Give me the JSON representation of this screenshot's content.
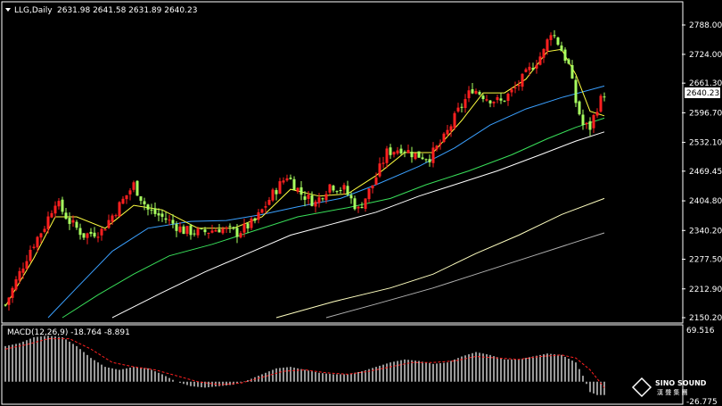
{
  "header": {
    "symbol_title": "LLG,Daily",
    "ohlc": "2631.98 2641.58 2631.89 2640.23"
  },
  "macd_label": "MACD(12,26,9) -18.764 -8.891",
  "watermark": {
    "brand": "SINO SOUND",
    "sub": "漢 聲 集 團"
  },
  "colors": {
    "background": "#000000",
    "up_candle": "#ff2020",
    "down_candle": "#a8ff60",
    "ma_fast": "#ffff40",
    "ma_mid": "#3aa0ff",
    "ma_slow": "#39e05a",
    "ma_white": "#ffffff",
    "ma_long1": "#ffffc0",
    "ma_long2": "#b0b0b0",
    "macd_hist": "#ffffff",
    "macd_signal": "#ff2020",
    "current_price_box": "#ffffff"
  },
  "chart_data": [
    {
      "type": "candlestick",
      "x_unit": "trading days (oldest to newest)",
      "yticks": [
        "2788.00",
        "2724.00",
        "2661.30",
        "2596.70",
        "2532.10",
        "2469.45",
        "2404.80",
        "2340.20",
        "2277.50",
        "2212.90",
        "2150.20"
      ],
      "current_price": "2640.23",
      "ylim": [
        2150.2,
        2788.0
      ],
      "path_points": [
        [
          0,
          2178
        ],
        [
          3,
          2230
        ],
        [
          7,
          2300
        ],
        [
          11,
          2350
        ],
        [
          14,
          2405
        ],
        [
          18,
          2360
        ],
        [
          22,
          2330
        ],
        [
          27,
          2340
        ],
        [
          32,
          2395
        ],
        [
          36,
          2440
        ],
        [
          40,
          2385
        ],
        [
          45,
          2365
        ],
        [
          50,
          2340
        ],
        [
          55,
          2335
        ],
        [
          60,
          2345
        ],
        [
          65,
          2335
        ],
        [
          70,
          2360
        ],
        [
          75,
          2420
        ],
        [
          79,
          2460
        ],
        [
          83,
          2420
        ],
        [
          87,
          2400
        ],
        [
          91,
          2440
        ],
        [
          95,
          2430
        ],
        [
          99,
          2385
        ],
        [
          103,
          2440
        ],
        [
          107,
          2510
        ],
        [
          111,
          2520
        ],
        [
          115,
          2505
        ],
        [
          119,
          2500
        ],
        [
          123,
          2540
        ],
        [
          127,
          2600
        ],
        [
          131,
          2650
        ],
        [
          135,
          2630
        ],
        [
          139,
          2620
        ],
        [
          143,
          2650
        ],
        [
          147,
          2690
        ],
        [
          151,
          2730
        ],
        [
          153,
          2775
        ],
        [
          155,
          2750
        ],
        [
          158,
          2700
        ],
        [
          160,
          2620
        ],
        [
          162,
          2570
        ],
        [
          164,
          2565
        ],
        [
          166,
          2610
        ],
        [
          168,
          2640
        ]
      ],
      "ma_fast_points": [
        [
          0,
          2175
        ],
        [
          8,
          2280
        ],
        [
          14,
          2370
        ],
        [
          20,
          2370
        ],
        [
          28,
          2345
        ],
        [
          36,
          2395
        ],
        [
          44,
          2385
        ],
        [
          54,
          2345
        ],
        [
          64,
          2345
        ],
        [
          72,
          2370
        ],
        [
          80,
          2430
        ],
        [
          88,
          2415
        ],
        [
          96,
          2420
        ],
        [
          104,
          2460
        ],
        [
          112,
          2510
        ],
        [
          120,
          2510
        ],
        [
          128,
          2580
        ],
        [
          134,
          2640
        ],
        [
          140,
          2640
        ],
        [
          146,
          2670
        ],
        [
          152,
          2730
        ],
        [
          156,
          2735
        ],
        [
          160,
          2680
        ],
        [
          164,
          2600
        ],
        [
          168,
          2590
        ]
      ],
      "ma_mid_points": [
        [
          12,
          2150
        ],
        [
          20,
          2215
        ],
        [
          30,
          2295
        ],
        [
          40,
          2345
        ],
        [
          52,
          2360
        ],
        [
          62,
          2362
        ],
        [
          72,
          2375
        ],
        [
          82,
          2392
        ],
        [
          94,
          2410
        ],
        [
          104,
          2440
        ],
        [
          116,
          2480
        ],
        [
          126,
          2520
        ],
        [
          136,
          2570
        ],
        [
          146,
          2605
        ],
        [
          156,
          2630
        ],
        [
          168,
          2655
        ]
      ],
      "ma_slow_points": [
        [
          16,
          2150
        ],
        [
          26,
          2200
        ],
        [
          36,
          2245
        ],
        [
          46,
          2285
        ],
        [
          58,
          2310
        ],
        [
          70,
          2340
        ],
        [
          82,
          2370
        ],
        [
          96,
          2390
        ],
        [
          108,
          2410
        ],
        [
          118,
          2440
        ],
        [
          130,
          2470
        ],
        [
          142,
          2505
        ],
        [
          152,
          2540
        ],
        [
          160,
          2565
        ],
        [
          168,
          2585
        ]
      ],
      "ma_white_points": [
        [
          30,
          2150
        ],
        [
          44,
          2205
        ],
        [
          56,
          2250
        ],
        [
          68,
          2290
        ],
        [
          80,
          2330
        ],
        [
          92,
          2355
        ],
        [
          104,
          2380
        ],
        [
          116,
          2415
        ],
        [
          126,
          2440
        ],
        [
          138,
          2470
        ],
        [
          150,
          2505
        ],
        [
          160,
          2535
        ],
        [
          168,
          2555
        ]
      ],
      "ma_long1_points": [
        [
          76,
          2150
        ],
        [
          92,
          2185
        ],
        [
          108,
          2215
        ],
        [
          120,
          2245
        ],
        [
          132,
          2290
        ],
        [
          144,
          2330
        ],
        [
          156,
          2375
        ],
        [
          168,
          2410
        ]
      ],
      "ma_long2_points": [
        [
          90,
          2150
        ],
        [
          104,
          2180
        ],
        [
          120,
          2215
        ],
        [
          134,
          2250
        ],
        [
          148,
          2285
        ],
        [
          160,
          2315
        ],
        [
          168,
          2335
        ]
      ]
    },
    {
      "type": "bar",
      "title": "MACD(12,26,9) -18.764 -8.891",
      "yticks": [
        "69.516",
        "-26.775"
      ],
      "ylim": [
        -26.775,
        69.516
      ],
      "histogram_points": [
        [
          0,
          48
        ],
        [
          4,
          52
        ],
        [
          8,
          60
        ],
        [
          12,
          62
        ],
        [
          16,
          60
        ],
        [
          20,
          48
        ],
        [
          24,
          32
        ],
        [
          28,
          20
        ],
        [
          32,
          16
        ],
        [
          36,
          20
        ],
        [
          40,
          18
        ],
        [
          44,
          10
        ],
        [
          48,
          0
        ],
        [
          52,
          -6
        ],
        [
          56,
          -8
        ],
        [
          60,
          -6
        ],
        [
          64,
          -4
        ],
        [
          68,
          2
        ],
        [
          72,
          10
        ],
        [
          76,
          18
        ],
        [
          80,
          20
        ],
        [
          84,
          16
        ],
        [
          88,
          12
        ],
        [
          92,
          10
        ],
        [
          96,
          10
        ],
        [
          100,
          14
        ],
        [
          104,
          20
        ],
        [
          108,
          26
        ],
        [
          112,
          30
        ],
        [
          116,
          28
        ],
        [
          120,
          24
        ],
        [
          124,
          26
        ],
        [
          128,
          34
        ],
        [
          132,
          40
        ],
        [
          136,
          36
        ],
        [
          140,
          30
        ],
        [
          144,
          30
        ],
        [
          148,
          34
        ],
        [
          152,
          38
        ],
        [
          156,
          36
        ],
        [
          160,
          26
        ],
        [
          162,
          8
        ],
        [
          164,
          -14
        ],
        [
          166,
          -18
        ],
        [
          168,
          -18
        ]
      ],
      "signal_points": [
        [
          0,
          44
        ],
        [
          6,
          50
        ],
        [
          12,
          58
        ],
        [
          18,
          58
        ],
        [
          24,
          44
        ],
        [
          30,
          26
        ],
        [
          36,
          20
        ],
        [
          42,
          16
        ],
        [
          48,
          8
        ],
        [
          54,
          0
        ],
        [
          60,
          -4
        ],
        [
          66,
          -2
        ],
        [
          72,
          6
        ],
        [
          78,
          14
        ],
        [
          84,
          16
        ],
        [
          90,
          12
        ],
        [
          96,
          10
        ],
        [
          102,
          14
        ],
        [
          108,
          20
        ],
        [
          114,
          26
        ],
        [
          120,
          26
        ],
        [
          126,
          28
        ],
        [
          132,
          34
        ],
        [
          138,
          32
        ],
        [
          144,
          30
        ],
        [
          150,
          34
        ],
        [
          156,
          36
        ],
        [
          160,
          32
        ],
        [
          164,
          16
        ],
        [
          168,
          -8
        ]
      ]
    }
  ]
}
